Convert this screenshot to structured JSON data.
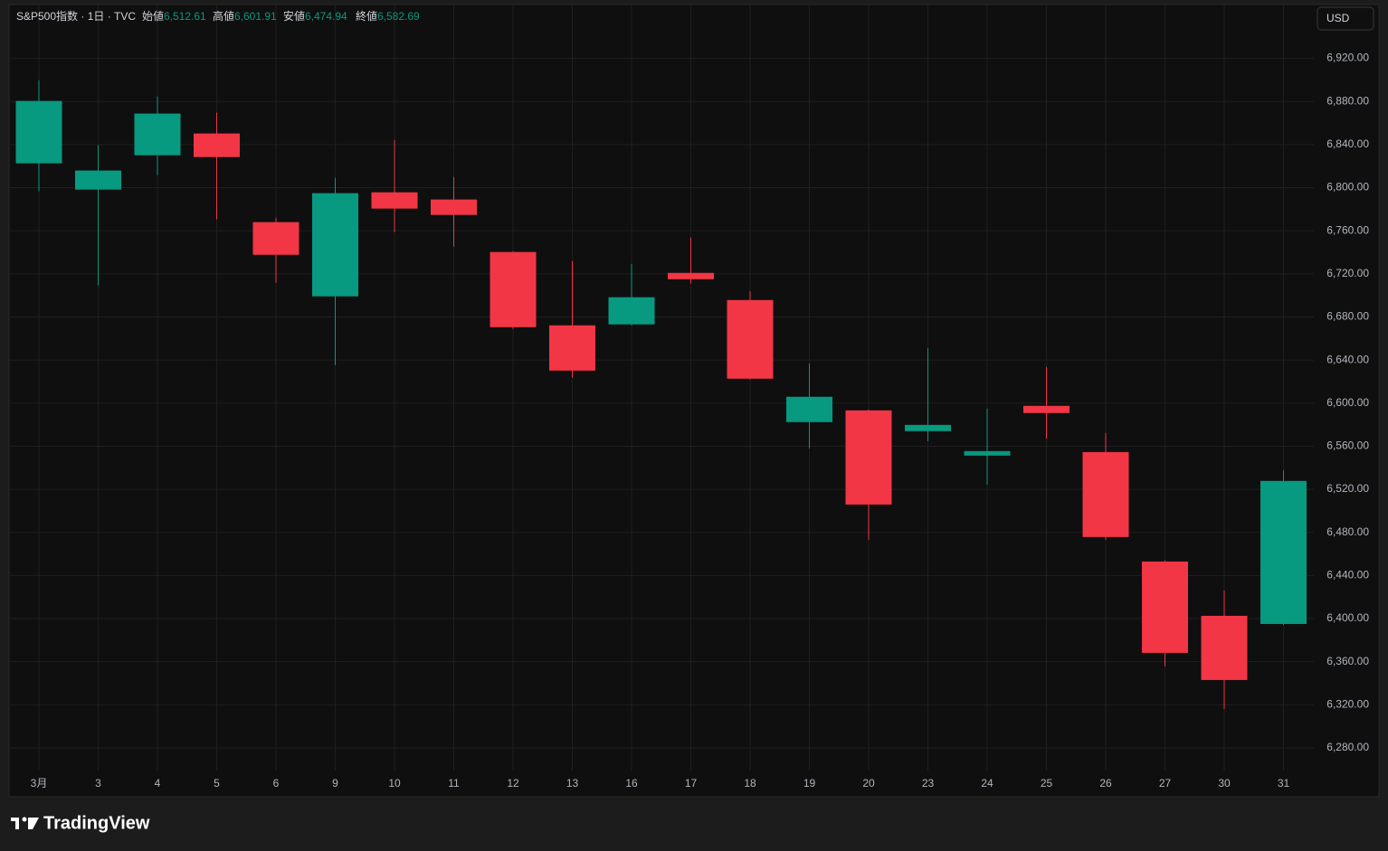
{
  "header": {
    "symbol": "S&P500指数 · 1日 · TVC",
    "open_label": "始値",
    "open": {
      "value": 6512.61,
      "label": "6,512.61"
    },
    "high_label": "高値",
    "high": {
      "value": 6601.91,
      "label": "6,601.91"
    },
    "low_label": "安値",
    "low": {
      "value": 6474.94,
      "label": "6,474.94"
    },
    "close_label": "終値",
    "close": {
      "value": 6582.69,
      "label": "6,582.69"
    },
    "currency": "USD"
  },
  "footer": {
    "brand": "TradingView"
  },
  "chart_data": {
    "type": "candlestick",
    "categories": [
      "3月",
      "3",
      "4",
      "5",
      "6",
      "9",
      "10",
      "11",
      "12",
      "13",
      "16",
      "17",
      "18",
      "19",
      "20",
      "23",
      "24",
      "25",
      "26",
      "27",
      "30",
      "31"
    ],
    "open": [
      6822.6,
      6798.2,
      6830.1,
      6850.3,
      6768,
      6699.1,
      6795.7,
      6789,
      6740.3,
      6672.2,
      6673.1,
      6720.9,
      6695.7,
      6582.4,
      6593.3,
      6574,
      6551.3,
      6597.5,
      6554.6,
      6453,
      6402.6,
      6395
    ],
    "high": [
      6899.8,
      6839.4,
      6884.7,
      6869.6,
      6772.2,
      6809.1,
      6844.4,
      6810,
      6741,
      6731.9,
      6729.3,
      6753.7,
      6704.1,
      6636.9,
      6594,
      6651.2,
      6595,
      6633.6,
      6572.3,
      6454,
      6426.1,
      6537.8
    ],
    "low": [
      6796.5,
      6709.2,
      6811.6,
      6770.5,
      6711.7,
      6635.3,
      6758.7,
      6745.3,
      6669,
      6623.5,
      6672,
      6710.9,
      6621.8,
      6558,
      6473.2,
      6564.7,
      6524.4,
      6567.2,
      6473.2,
      6355.6,
      6316.1,
      6394
    ],
    "close": [
      6880.5,
      6815.9,
      6868.8,
      6828.4,
      6737.7,
      6794.9,
      6780.6,
      6774.7,
      6670.5,
      6630.2,
      6698.3,
      6715,
      6622.7,
      6605.9,
      6505.9,
      6579.8,
      6555.5,
      6590.8,
      6475.7,
      6368.2,
      6343,
      6527.8
    ],
    "up_color": "#089981",
    "down_color": "#f23645",
    "ylim": [
      6259,
      6970
    ],
    "yticks": [
      {
        "value": 6280,
        "label": "6,280.00"
      },
      {
        "value": 6320,
        "label": "6,320.00"
      },
      {
        "value": 6360,
        "label": "6,360.00"
      },
      {
        "value": 6400,
        "label": "6,400.00"
      },
      {
        "value": 6440,
        "label": "6,440.00"
      },
      {
        "value": 6480,
        "label": "6,480.00"
      },
      {
        "value": 6520,
        "label": "6,520.00"
      },
      {
        "value": 6560,
        "label": "6,560.00"
      },
      {
        "value": 6600,
        "label": "6,600.00"
      },
      {
        "value": 6640,
        "label": "6,640.00"
      },
      {
        "value": 6680,
        "label": "6,680.00"
      },
      {
        "value": 6720,
        "label": "6,720.00"
      },
      {
        "value": 6760,
        "label": "6,760.00"
      },
      {
        "value": 6800,
        "label": "6,800.00"
      },
      {
        "value": 6840,
        "label": "6,840.00"
      },
      {
        "value": 6880,
        "label": "6,880.00"
      },
      {
        "value": 6920,
        "label": "6,920.00"
      }
    ],
    "grid": true
  }
}
